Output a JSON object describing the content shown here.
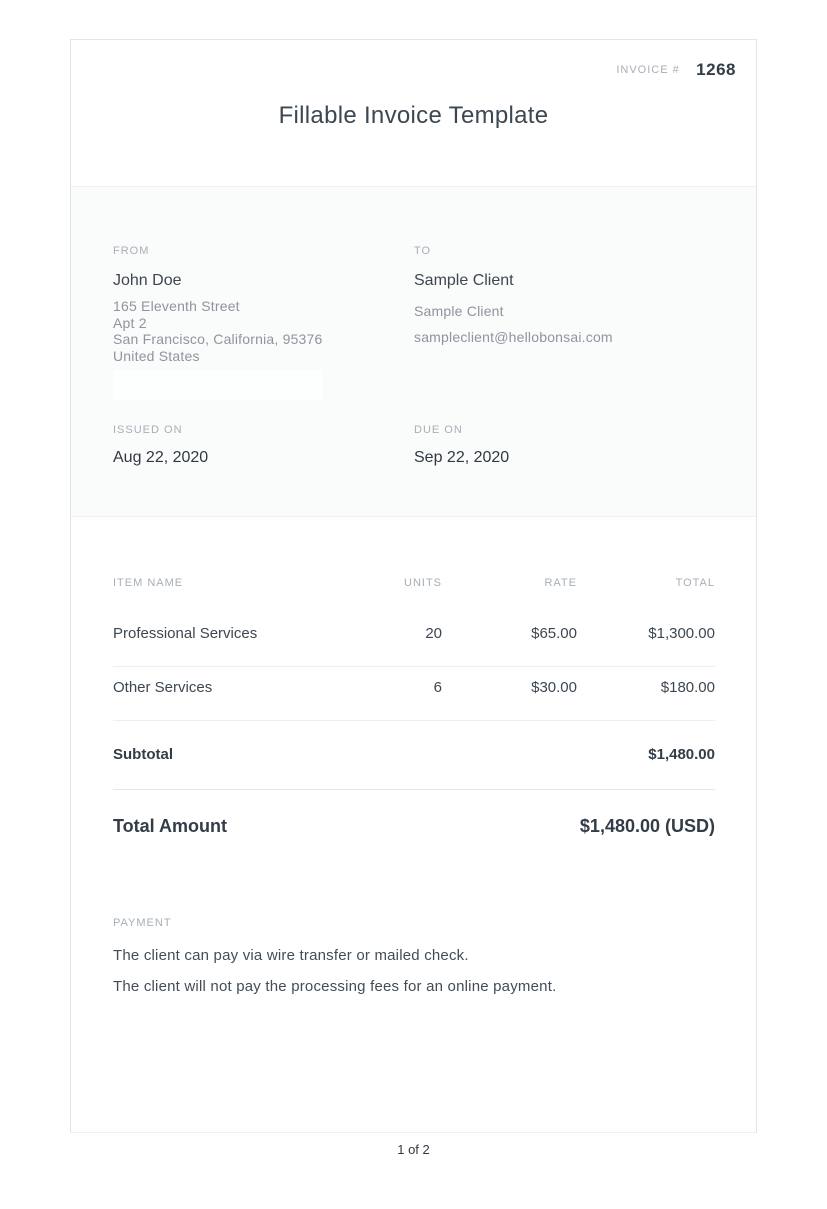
{
  "invoice": {
    "number_label": "INVOICE #",
    "number": "1268",
    "title": "Fillable Invoice Template"
  },
  "parties": {
    "from": {
      "label": "FROM",
      "name": "John Doe",
      "address_line1": "165 Eleventh Street",
      "address_line2": "Apt 2",
      "address_line3": "San Francisco, California, 95376",
      "address_line4": "United States"
    },
    "to": {
      "label": "TO",
      "name": "Sample Client",
      "contact_name": "Sample Client",
      "email": "sampleclient@hellobonsai.com"
    }
  },
  "dates": {
    "issued_label": "ISSUED ON",
    "issued_value": "Aug 22, 2020",
    "due_label": "DUE ON",
    "due_value": "Sep 22, 2020"
  },
  "items_table": {
    "headers": {
      "item": "ITEM NAME",
      "units": "UNITS",
      "rate": "RATE",
      "total": "TOTAL"
    },
    "rows": [
      {
        "name": "Professional Services",
        "units": "20",
        "rate": "$65.00",
        "total": "$1,300.00"
      },
      {
        "name": "Other Services",
        "units": "6",
        "rate": "$30.00",
        "total": "$180.00"
      }
    ],
    "subtotal_label": "Subtotal",
    "subtotal_value": "$1,480.00",
    "total_label": "Total Amount",
    "total_value": "$1,480.00 (USD)"
  },
  "payment": {
    "label": "PAYMENT",
    "line1": "The client can pay via wire transfer or mailed check.",
    "line2": "The client will not pay the processing fees for an online payment."
  },
  "footer": {
    "page_indicator": "1 of 2"
  },
  "colors": {
    "card_border": "#e2e5e6",
    "muted_label": "#a7afb7",
    "dark_text": "#333d47",
    "body_text": "#3d4751",
    "address_gray": "#8d959d",
    "section_bg": "#fafbfb",
    "divider": "#eceff0"
  }
}
